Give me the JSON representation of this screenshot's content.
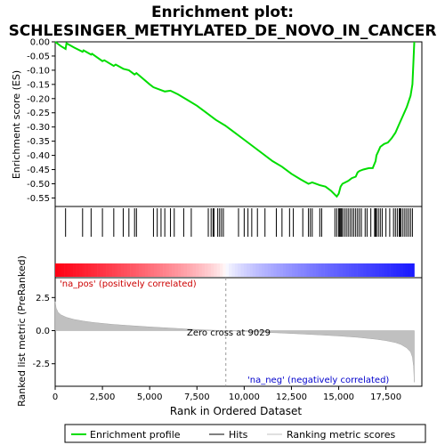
{
  "chart_data": {
    "type": "line",
    "title_line1": "Enrichment plot:",
    "title_line2": "SCHLESINGER_METHYLATED_DE_NOVO_IN_CANCER",
    "es_panel": {
      "ylabel": "Enrichment score (ES)",
      "ylim": [
        -0.58,
        0.0
      ],
      "yticks": [
        "0.00",
        "-0.05",
        "-0.10",
        "-0.15",
        "-0.20",
        "-0.25",
        "-0.30",
        "-0.35",
        "-0.40",
        "-0.45",
        "-0.50",
        "-0.55"
      ],
      "ytick_values": [
        0.0,
        -0.05,
        -0.1,
        -0.15,
        -0.2,
        -0.25,
        -0.3,
        -0.35,
        -0.4,
        -0.45,
        -0.5,
        -0.55
      ],
      "curve_color": "#00dd00",
      "series": [
        {
          "name": "Enrichment profile",
          "x": [
            0,
            300,
            550,
            600,
            1000,
            1450,
            1500,
            1900,
            1950,
            2500,
            2600,
            3100,
            3200,
            3600,
            3900,
            4200,
            4300,
            5000,
            5200,
            5800,
            6100,
            6500,
            7000,
            7500,
            8000,
            8500,
            9000,
            9500,
            10000,
            10500,
            11000,
            11500,
            12000,
            12500,
            13000,
            13400,
            13600,
            14000,
            14300,
            14600,
            14900,
            15000,
            15100,
            15200,
            15500,
            15700,
            15900,
            16000,
            16100,
            16300,
            16600,
            16800,
            16950,
            17000,
            17100,
            17200,
            17400,
            17600,
            17800,
            18000,
            18200,
            18400,
            18600,
            18800,
            18900,
            18950,
            19000
          ],
          "y": [
            0.0,
            -0.015,
            -0.025,
            -0.005,
            -0.02,
            -0.035,
            -0.03,
            -0.045,
            -0.042,
            -0.068,
            -0.065,
            -0.085,
            -0.08,
            -0.095,
            -0.1,
            -0.115,
            -0.11,
            -0.15,
            -0.16,
            -0.175,
            -0.172,
            -0.185,
            -0.205,
            -0.225,
            -0.25,
            -0.275,
            -0.295,
            -0.32,
            -0.345,
            -0.37,
            -0.395,
            -0.42,
            -0.44,
            -0.465,
            -0.485,
            -0.5,
            -0.495,
            -0.505,
            -0.51,
            -0.525,
            -0.545,
            -0.535,
            -0.51,
            -0.5,
            -0.49,
            -0.48,
            -0.475,
            -0.46,
            -0.455,
            -0.45,
            -0.445,
            -0.445,
            -0.42,
            -0.4,
            -0.385,
            -0.37,
            -0.36,
            -0.355,
            -0.34,
            -0.32,
            -0.29,
            -0.26,
            -0.23,
            -0.19,
            -0.15,
            -0.08,
            0.0
          ]
        }
      ]
    },
    "hits": [
      550,
      1450,
      1900,
      2500,
      3100,
      3600,
      3900,
      4200,
      4300,
      5200,
      5400,
      5600,
      5800,
      6100,
      6300,
      6800,
      7200,
      8100,
      8250,
      8350,
      8400,
      8600,
      8700,
      8800,
      8900,
      9700,
      10000,
      10200,
      10400,
      10700,
      11100,
      11700,
      12000,
      12400,
      12600,
      13100,
      13400,
      13500,
      13600,
      14000,
      14100,
      14800,
      14900,
      15000,
      15050,
      15100,
      15150,
      15200,
      15300,
      15400,
      15500,
      15600,
      15700,
      15800,
      15900,
      16000,
      16100,
      16200,
      16400,
      16500,
      16700,
      16900,
      16950,
      17000,
      17100,
      17200,
      17300,
      17500,
      17700,
      17900,
      18000,
      18100,
      18200,
      18250,
      18300,
      18400,
      18500,
      18600,
      18700,
      18800,
      18900
    ],
    "rank_metric_panel": {
      "ylabel": "Ranked list metric (PreRanked)",
      "ylim": [
        -4.2,
        4.0
      ],
      "yticks": [
        "2.5",
        "0.0",
        "-2.5"
      ],
      "ytick_values": [
        2.5,
        0.0,
        -2.5
      ],
      "fill_color": "#c0c0c0",
      "x": [
        0,
        50,
        150,
        300,
        600,
        1000,
        1500,
        2000,
        3000,
        4000,
        5000,
        6000,
        7000,
        8000,
        9029,
        10000,
        11000,
        12000,
        13000,
        14000,
        15000,
        16000,
        17000,
        17500,
        18000,
        18300,
        18600,
        18800,
        18900,
        18960,
        19000
      ],
      "y": [
        2.2,
        1.7,
        1.4,
        1.2,
        1.0,
        0.85,
        0.72,
        0.62,
        0.48,
        0.38,
        0.28,
        0.2,
        0.12,
        0.05,
        0.0,
        -0.05,
        -0.12,
        -0.18,
        -0.25,
        -0.32,
        -0.4,
        -0.5,
        -0.65,
        -0.75,
        -0.9,
        -1.05,
        -1.3,
        -1.6,
        -2.0,
        -2.7,
        -3.9
      ],
      "zero_cross_label": "Zero cross at 9029",
      "zero_cross": 9029,
      "pos_label": "'na_pos' (positively correlated)",
      "neg_label": "'na_neg' (negatively correlated)",
      "pos_label_color": "#cc0000",
      "neg_label_color": "#0000cc"
    },
    "xlabel": "Rank in Ordered Dataset",
    "xlim": [
      0,
      19400
    ],
    "xticks": [
      "0",
      "2,500",
      "5,000",
      "7,500",
      "10,000",
      "12,500",
      "15,000",
      "17,500"
    ],
    "xtick_values": [
      0,
      2500,
      5000,
      7500,
      10000,
      12500,
      15000,
      17500
    ],
    "n_genes": 19000,
    "legend": {
      "placement": "bottom",
      "entries": [
        {
          "label": "Enrichment profile",
          "color": "#00dd00"
        },
        {
          "label": "Hits",
          "color": "#000000"
        },
        {
          "label": "Ranking metric scores",
          "color": "#c0c0c0"
        }
      ]
    }
  }
}
